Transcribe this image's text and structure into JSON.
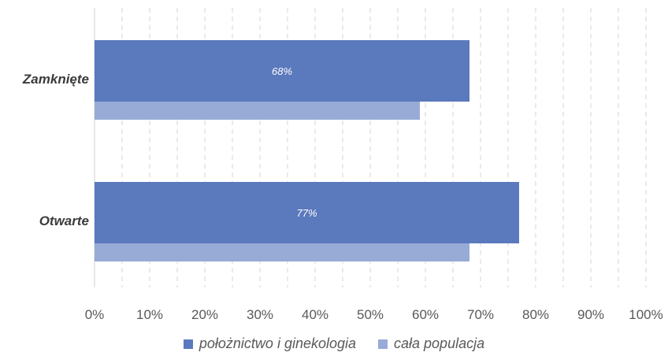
{
  "chart_data": {
    "type": "bar",
    "orientation": "horizontal",
    "categories": [
      "Zamknięte",
      "Otwarte"
    ],
    "series": [
      {
        "name": "położnictwo i ginekologia",
        "values": [
          68,
          77
        ],
        "color": "#5b79bd",
        "data_labels": [
          "68%",
          "77%"
        ]
      },
      {
        "name": "cała populacja",
        "values": [
          59,
          68
        ],
        "color": "#97abd6"
      }
    ],
    "xlim": [
      0,
      100
    ],
    "x_ticks": [
      "0%",
      "10%",
      "20%",
      "30%",
      "40%",
      "50%",
      "60%",
      "70%",
      "80%",
      "90%",
      "100%"
    ],
    "grid": true,
    "legend_position": "bottom"
  }
}
